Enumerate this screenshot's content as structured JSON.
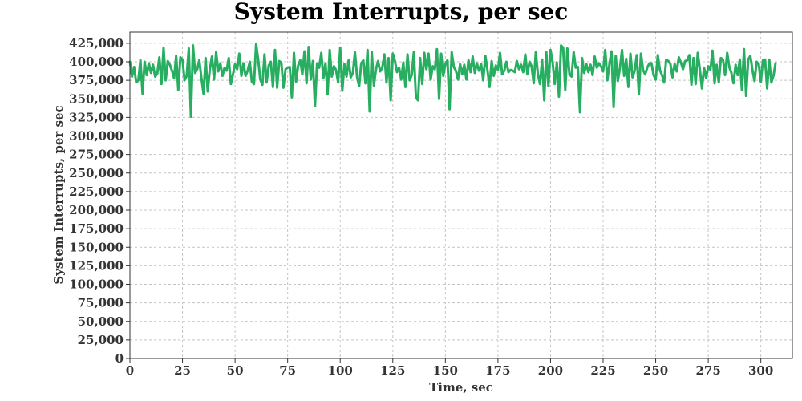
{
  "chart_data": {
    "type": "line",
    "title": "System Interrupts, per sec",
    "xlabel": "Time, sec",
    "ylabel": "System Interrupts, per sec",
    "xlim": [
      0,
      315
    ],
    "ylim": [
      0,
      440000
    ],
    "x_ticks": [
      0,
      25,
      50,
      75,
      100,
      125,
      150,
      175,
      200,
      225,
      250,
      275,
      300
    ],
    "x_tick_labels": [
      "0",
      "25",
      "50",
      "75",
      "100",
      "125",
      "150",
      "175",
      "200",
      "225",
      "250",
      "275",
      "300"
    ],
    "y_ticks": [
      0,
      25000,
      50000,
      75000,
      100000,
      125000,
      150000,
      175000,
      200000,
      225000,
      250000,
      275000,
      300000,
      325000,
      350000,
      375000,
      400000,
      425000
    ],
    "y_tick_labels": [
      "0",
      "25,000",
      "50,000",
      "75,000",
      "100,000",
      "125,000",
      "150,000",
      "175,000",
      "200,000",
      "225,000",
      "250,000",
      "275,000",
      "300,000",
      "325,000",
      "350,000",
      "375,000",
      "400,000",
      "425,000"
    ],
    "grid": true,
    "legend": "none",
    "series": [
      {
        "color": "#27ae60",
        "x_start": 0,
        "x_step": 1,
        "values": [
          400000,
          380000,
          393000,
          372000,
          375000,
          402000,
          357000,
          400000,
          382000,
          398000,
          385000,
          396000,
          380000,
          384000,
          406000,
          370000,
          419000,
          375000,
          401000,
          396000,
          388000,
          378000,
          408000,
          362000,
          406000,
          403000,
          375000,
          381000,
          418000,
          326000,
          422000,
          385000,
          390000,
          402000,
          378000,
          357000,
          405000,
          360000,
          390000,
          407000,
          376000,
          413000,
          387000,
          398000,
          381000,
          392000,
          388000,
          405000,
          370000,
          383000,
          397000,
          390000,
          411000,
          381000,
          398000,
          381000,
          388000,
          400000,
          373000,
          370000,
          424000,
          403000,
          376000,
          369000,
          410000,
          372000,
          395000,
          400000,
          366000,
          416000,
          365000,
          401000,
          399000,
          365000,
          390000,
          392000,
          393000,
          352000,
          412000,
          373000,
          395000,
          402000,
          383000,
          414000,
          371000,
          420000,
          376000,
          401000,
          340000,
          398000,
          392000,
          412000,
          378000,
          398000,
          356000,
          416000,
          380000,
          394000,
          389000,
          372000,
          419000,
          361000,
          397000,
          380000,
          402000,
          379000,
          385000,
          413000,
          380000,
          367000,
          398000,
          402000,
          371000,
          416000,
          333000,
          413000,
          368000,
          390000,
          401000,
          387000,
          392000,
          410000,
          372000,
          405000,
          348000,
          411000,
          401000,
          386000,
          392000,
          376000,
          399000,
          366000,
          410000,
          375000,
          382000,
          413000,
          352000,
          348000,
          405000,
          370000,
          412000,
          390000,
          411000,
          376000,
          394000,
          390000,
          417000,
          350000,
          411000,
          381000,
          397000,
          402000,
          336000,
          413000,
          393000,
          388000,
          376000,
          397000,
          383000,
          396000,
          376000,
          402000,
          386000,
          407000,
          385000,
          398000,
          388000,
          397000,
          375000,
          408000,
          389000,
          366000,
          401000,
          381000,
          395000,
          389000,
          412000,
          383000,
          388000,
          400000,
          386000,
          389000,
          388000,
          386000,
          401000,
          390000,
          396000,
          386000,
          410000,
          383000,
          400000,
          394000,
          371000,
          413000,
          383000,
          370000,
          403000,
          348000,
          413000,
          367000,
          416000,
          399000,
          370000,
          399000,
          353000,
          422000,
          419000,
          362000,
          418000,
          383000,
          380000,
          413000,
          392000,
          393000,
          332000,
          405000,
          385000,
          397000,
          386000,
          396000,
          382000,
          407000,
          392000,
          398000,
          394000,
          387000,
          416000,
          375000,
          397000,
          414000,
          339000,
          408000,
          374000,
          392000,
          416000,
          381000,
          404000,
          366000,
          411000,
          379000,
          388000,
          409000,
          356000,
          411000,
          389000,
          383000,
          392000,
          398000,
          398000,
          382000,
          376000,
          409000,
          389000,
          382000,
          372000,
          403000,
          401000,
          397000,
          379000,
          397000,
          387000,
          406000,
          399000,
          390000,
          401000,
          402000,
          409000,
          369000,
          405000,
          370000,
          412000,
          390000,
          364000,
          392000,
          378000,
          394000,
          389000,
          415000,
          371000,
          396000,
          372000,
          405000,
          403000,
          382000,
          412000,
          393000,
          385000,
          371000,
          396000,
          382000,
          403000,
          362000,
          417000,
          354000,
          403000,
          408000,
          389000,
          374000,
          400000,
          397000,
          373000,
          402000,
          403000,
          364000,
          403000,
          372000,
          381000,
          398000
        ]
      }
    ]
  }
}
